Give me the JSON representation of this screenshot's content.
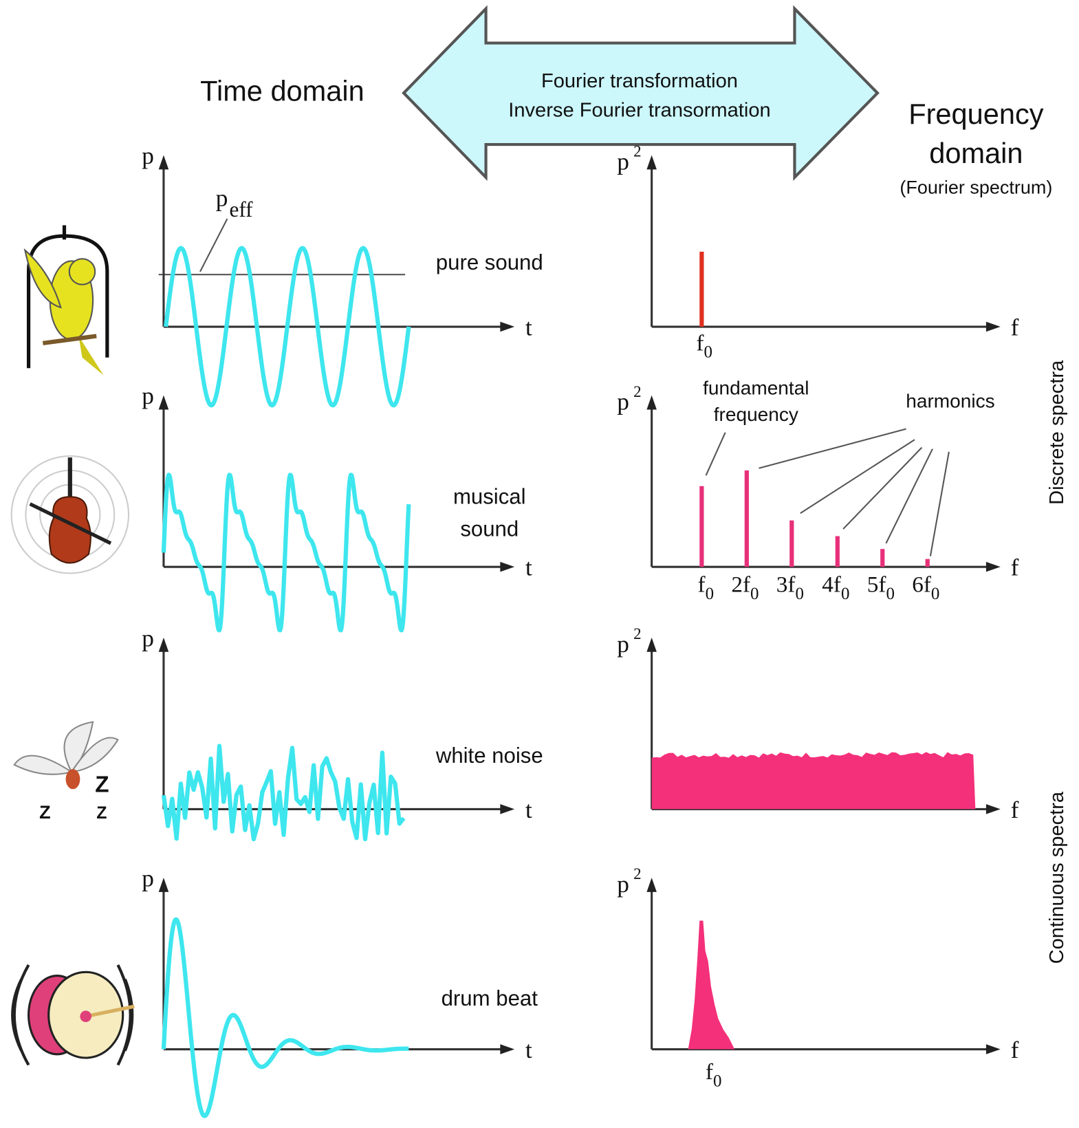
{
  "header": {
    "time_domain": "Time domain",
    "frequency_domain": [
      "Frequency",
      "domain"
    ],
    "frequency_note": "(Fourier spectrum)"
  },
  "arrow": {
    "lines": [
      "Fourier transformation",
      "Inverse Fourier transormation"
    ]
  },
  "panels": [
    {
      "label": [
        "pure sound"
      ],
      "time_y": "p",
      "time_x": "t",
      "freq_y": "p",
      "freq_y_sup": "2",
      "freq_x": "f"
    },
    {
      "label": [
        "musical",
        "sound"
      ],
      "time_y": "p",
      "time_x": "t",
      "freq_y": "p",
      "freq_y_sup": "2",
      "freq_x": "f"
    },
    {
      "label": [
        "white noise"
      ],
      "time_y": "p",
      "time_x": "t",
      "freq_y": "p",
      "freq_y_sup": "2",
      "freq_x": "f"
    },
    {
      "label": [
        "drum beat"
      ],
      "time_y": "p",
      "time_x": "t",
      "freq_y": "p",
      "freq_y_sup": "2",
      "freq_x": "f"
    }
  ],
  "annotations": {
    "peff": {
      "base": "p",
      "sub": "eff"
    },
    "fundamental": [
      "fundamental",
      "frequency"
    ],
    "harmonics": "harmonics"
  },
  "freq_labels": {
    "pure": [
      {
        "base": "f",
        "sub": "0"
      }
    ],
    "harmonic": [
      {
        "base": "f",
        "sub": "0"
      },
      {
        "base": "2f",
        "sub": "0"
      },
      {
        "base": "3f",
        "sub": "0"
      },
      {
        "base": "4f",
        "sub": "0"
      },
      {
        "base": "5f",
        "sub": "0"
      },
      {
        "base": "6f",
        "sub": "0"
      }
    ],
    "drum": [
      {
        "base": "f",
        "sub": "0"
      }
    ]
  },
  "side_labels": {
    "discrete": "Discrete spectra",
    "continuous": "Continuous spectra"
  }
}
